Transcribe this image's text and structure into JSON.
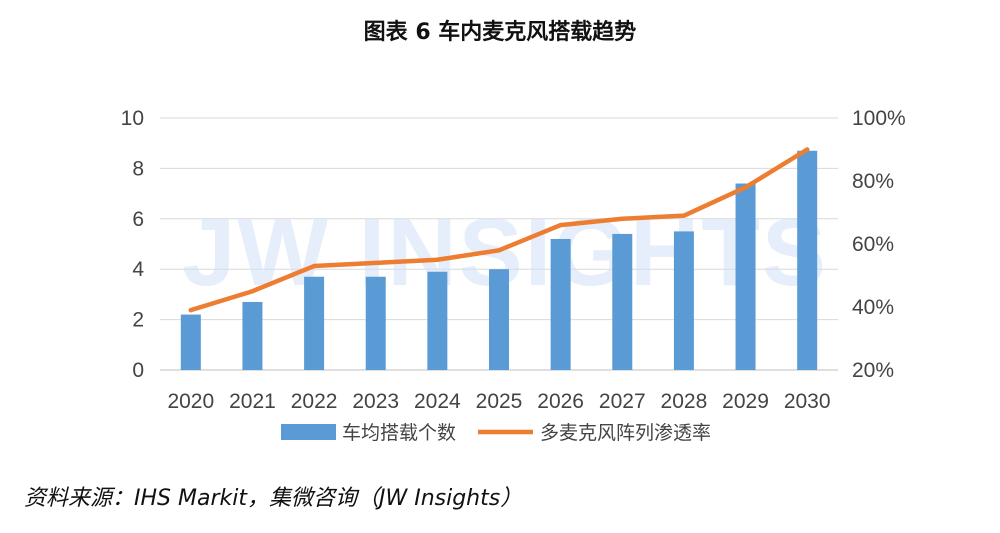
{
  "title": "图表 6  车内麦克风搭载趋势",
  "source": "资料来源：IHS Markit，集微咨询（JW Insights）",
  "watermark": "JW INSIGHTS",
  "colors": {
    "bar": "#5b9bd5",
    "line": "#ed7d31",
    "grid": "#d9d9d9",
    "watermark": "#cfe0f5"
  },
  "chart_data": {
    "type": "bar",
    "categories": [
      "2020",
      "2021",
      "2022",
      "2023",
      "2024",
      "2025",
      "2026",
      "2027",
      "2028",
      "2029",
      "2030"
    ],
    "series": [
      {
        "name": "车均搭载个数",
        "type": "bar",
        "axis": "left",
        "values": [
          2.2,
          2.7,
          3.7,
          3.7,
          3.9,
          4.0,
          5.2,
          5.4,
          5.5,
          7.4,
          8.7
        ]
      },
      {
        "name": "多麦克风阵列渗透率",
        "type": "line",
        "axis": "right",
        "values": [
          39,
          45,
          53,
          54,
          55,
          58,
          66,
          68,
          69,
          78,
          90
        ]
      }
    ],
    "y_left": {
      "min": 0,
      "max": 10,
      "ticks": [
        "0",
        "2",
        "4",
        "6",
        "8",
        "10"
      ]
    },
    "y_right": {
      "min": 20,
      "max": 100,
      "ticks": [
        "20%",
        "40%",
        "60%",
        "80%",
        "100%"
      ]
    },
    "legend_position": "bottom",
    "grid": true
  }
}
